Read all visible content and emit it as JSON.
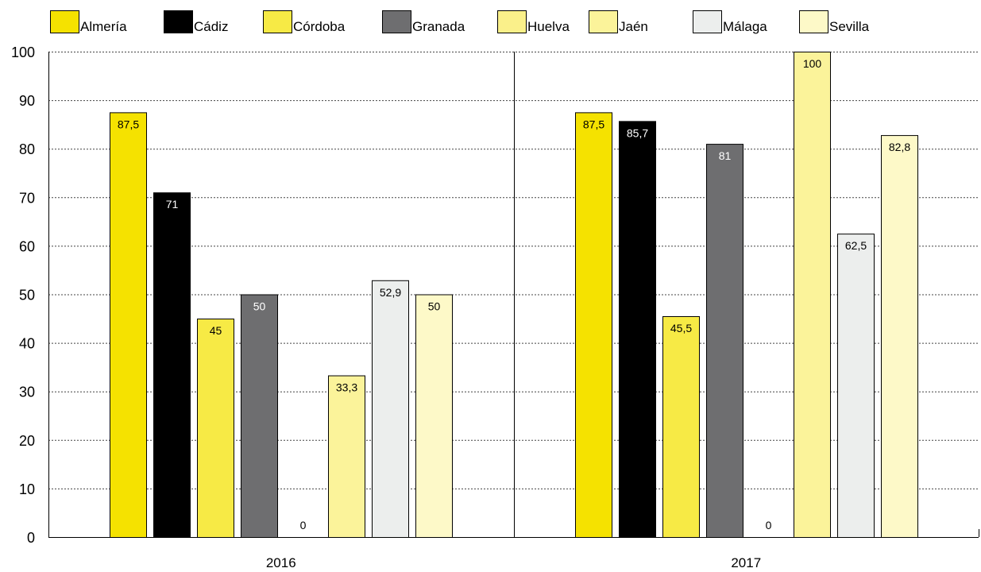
{
  "chart_data": {
    "type": "bar",
    "categories": [
      "2016",
      "2017"
    ],
    "series": [
      {
        "name": "Almería",
        "values": [
          87.5,
          87.5
        ],
        "labels": [
          "87,5",
          "87,5"
        ],
        "color": "#f5e200",
        "label_color": "#000000"
      },
      {
        "name": "Cádiz",
        "values": [
          71,
          85.7
        ],
        "labels": [
          "71",
          "85,7"
        ],
        "color": "#000000",
        "label_color": "#ffffff"
      },
      {
        "name": "Córdoba",
        "values": [
          45,
          45.5
        ],
        "labels": [
          "45",
          "45,5"
        ],
        "color": "#f7ea45",
        "label_color": "#000000"
      },
      {
        "name": "Granada",
        "values": [
          50,
          81
        ],
        "labels": [
          "50",
          "81"
        ],
        "color": "#6e6e70",
        "label_color": "#ffffff"
      },
      {
        "name": "Huelva",
        "values": [
          0,
          0
        ],
        "labels": [
          "0",
          "0"
        ],
        "color": "#faf08a",
        "label_color": "#000000"
      },
      {
        "name": "Jaén",
        "values": [
          33.3,
          100
        ],
        "labels": [
          "33,3",
          "100"
        ],
        "color": "#fbf39a",
        "label_color": "#000000"
      },
      {
        "name": "Málaga",
        "values": [
          52.9,
          62.5
        ],
        "labels": [
          "52,9",
          "62,5"
        ],
        "color": "#eceeed",
        "label_color": "#000000"
      },
      {
        "name": "Sevilla",
        "values": [
          50,
          82.8
        ],
        "labels": [
          "50",
          "82,8"
        ],
        "color": "#fdf9c8",
        "label_color": "#000000"
      }
    ],
    "yticks": [
      "0",
      "10",
      "20",
      "30",
      "40",
      "50",
      "60",
      "70",
      "80",
      "90",
      "100"
    ],
    "ylim": [
      0,
      100
    ],
    "grid": true,
    "legend": "top",
    "title": "",
    "xlabel": "",
    "ylabel": ""
  }
}
